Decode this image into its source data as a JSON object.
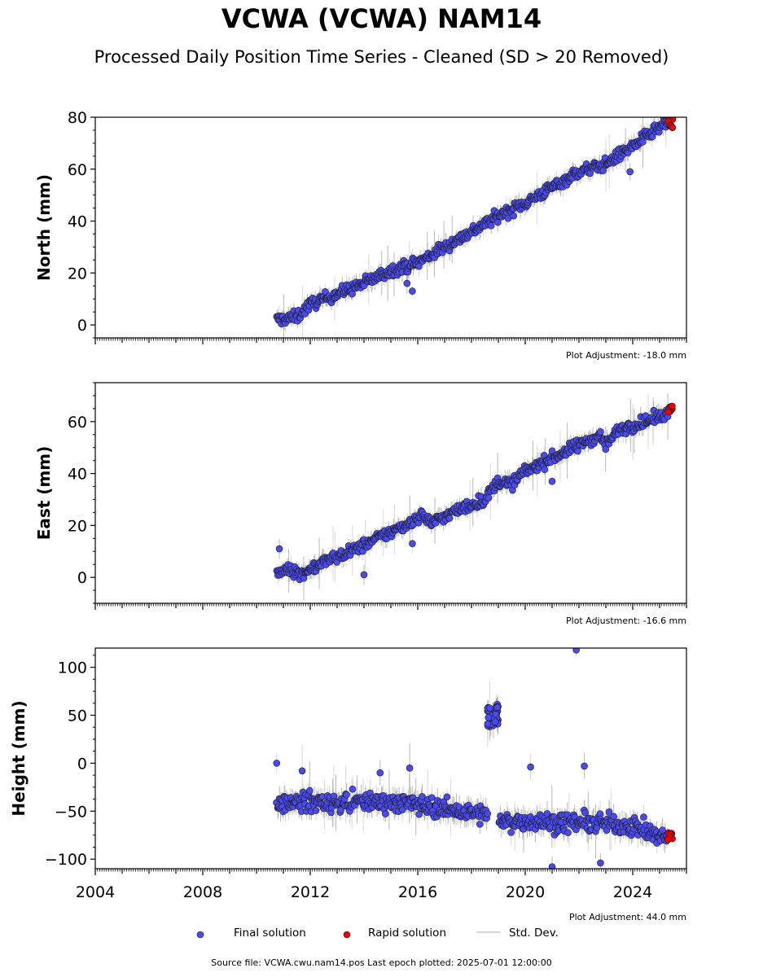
{
  "title": "VCWA (VCWA) NAM14",
  "subtitle": "Processed Daily Position Time Series - Cleaned (SD > 20 Removed)",
  "footer": "Source file: VCWA.cwu.nam14.pos  Last epoch plotted: 2025-07-01 12:00:00",
  "legend": {
    "final": "Final solution",
    "rapid": "Rapid solution",
    "std": "Std. Dev."
  },
  "colors": {
    "final": "#4a4aee",
    "rapid": "#ee0000",
    "std": "#c8c8c8",
    "edge": "#1a1a1a"
  },
  "chart_data": {
    "type": "scatter",
    "xlim": [
      2004,
      2026
    ],
    "x_ticks": [
      2004,
      2008,
      2012,
      2016,
      2020,
      2024
    ],
    "x_tick_labels": [
      "2004",
      "2008",
      "2012",
      "2016",
      "2020",
      "2024"
    ],
    "panels": [
      {
        "ylabel": "North (mm)",
        "ylim": [
          -5,
          80
        ],
        "y_ticks": [
          0,
          20,
          40,
          60,
          80
        ],
        "adjustment": "Plot Adjustment: -18.0 mm",
        "final_trend": [
          [
            2010.75,
            2
          ],
          [
            2011.5,
            3
          ],
          [
            2012,
            8
          ],
          [
            2013,
            12
          ],
          [
            2014,
            16
          ],
          [
            2015,
            21
          ],
          [
            2016,
            24
          ],
          [
            2017,
            30
          ],
          [
            2018,
            36
          ],
          [
            2019,
            42
          ],
          [
            2020,
            47
          ],
          [
            2021,
            53
          ],
          [
            2022,
            59
          ],
          [
            2023,
            62
          ],
          [
            2024,
            69
          ],
          [
            2025,
            76
          ],
          [
            2025.3,
            78
          ]
        ],
        "final_outliers": [
          [
            2015.6,
            16
          ],
          [
            2015.8,
            13
          ],
          [
            2023.9,
            59
          ]
        ],
        "rapid_range": [
          2025.3,
          2025.5
        ],
        "rapid_values": [
          76,
          80
        ]
      },
      {
        "ylabel": "East (mm)",
        "ylim": [
          -10,
          75
        ],
        "y_ticks": [
          0,
          20,
          40,
          60
        ],
        "adjustment": "Plot Adjustment: -16.6 mm",
        "final_trend": [
          [
            2010.75,
            1
          ],
          [
            2011.2,
            4
          ],
          [
            2011.6,
            1
          ],
          [
            2012.5,
            6
          ],
          [
            2013.5,
            10
          ],
          [
            2014.5,
            15
          ],
          [
            2015.5,
            20
          ],
          [
            2016.2,
            24
          ],
          [
            2016.5,
            21
          ],
          [
            2017.5,
            26
          ],
          [
            2018.5,
            30
          ],
          [
            2019,
            37
          ],
          [
            2019.5,
            36
          ],
          [
            2020,
            41
          ],
          [
            2021,
            46
          ],
          [
            2022,
            51
          ],
          [
            2022.8,
            55
          ],
          [
            2023,
            51
          ],
          [
            2023.5,
            57
          ],
          [
            2024.5,
            60
          ],
          [
            2025.3,
            63
          ]
        ],
        "final_outliers": [
          [
            2014,
            1
          ],
          [
            2015.8,
            13
          ],
          [
            2021,
            37
          ],
          [
            2010.85,
            11
          ]
        ],
        "rapid_range": [
          2025.3,
          2025.5
        ],
        "rapid_values": [
          63,
          66
        ]
      },
      {
        "ylabel": "Height (mm)",
        "ylim": [
          -110,
          120
        ],
        "y_ticks": [
          -100,
          -50,
          0,
          50,
          100
        ],
        "adjustment": "Plot Adjustment: 44.0 mm",
        "final_trend": [
          [
            2010.75,
            -42
          ],
          [
            2012,
            -40
          ],
          [
            2013,
            -42
          ],
          [
            2014,
            -40
          ],
          [
            2015,
            -40
          ],
          [
            2016,
            -43
          ],
          [
            2017,
            -48
          ],
          [
            2018,
            -52
          ],
          [
            2018.7,
            -55
          ],
          [
            2019.1,
            -62
          ],
          [
            2020,
            -60
          ],
          [
            2021,
            -62
          ],
          [
            2022,
            -62
          ],
          [
            2023,
            -63
          ],
          [
            2024,
            -65
          ],
          [
            2024.8,
            -75
          ],
          [
            2025.3,
            -78
          ]
        ],
        "final_cluster": {
          "x_range": [
            2018.6,
            2019.0
          ],
          "y_range": [
            38,
            62
          ]
        },
        "final_outliers": [
          [
            2010.75,
            0
          ],
          [
            2011.7,
            -8
          ],
          [
            2014.6,
            -10
          ],
          [
            2015.7,
            -5
          ],
          [
            2020.2,
            -4
          ],
          [
            2021.9,
            118
          ],
          [
            2022.2,
            -3
          ],
          [
            2021.0,
            -108
          ],
          [
            2022.8,
            -104
          ]
        ],
        "rapid_range": [
          2025.3,
          2025.5
        ],
        "rapid_values": [
          -82,
          -70
        ]
      }
    ]
  }
}
